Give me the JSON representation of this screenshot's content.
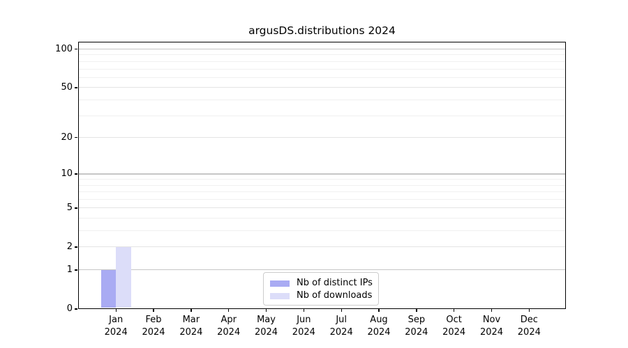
{
  "figure": {
    "background": "#ffffff"
  },
  "chart_data": {
    "type": "bar",
    "title": "argusDS.distributions 2024",
    "x_labels": [
      [
        "Jan",
        "2024"
      ],
      [
        "Feb",
        "2024"
      ],
      [
        "Mar",
        "2024"
      ],
      [
        "Apr",
        "2024"
      ],
      [
        "May",
        "2024"
      ],
      [
        "Jun",
        "2024"
      ],
      [
        "Jul",
        "2024"
      ],
      [
        "Aug",
        "2024"
      ],
      [
        "Sep",
        "2024"
      ],
      [
        "Oct",
        "2024"
      ],
      [
        "Nov",
        "2024"
      ],
      [
        "Dec",
        "2024"
      ]
    ],
    "series": [
      {
        "name": "Nb of distinct IPs",
        "color": "#a9abf3",
        "values": [
          1,
          0,
          0,
          0,
          0,
          0,
          0,
          0,
          0,
          0,
          0,
          0
        ]
      },
      {
        "name": "Nb of downloads",
        "color": "#dcddf9",
        "values": [
          2,
          0,
          0,
          0,
          0,
          0,
          0,
          0,
          0,
          0,
          0,
          0
        ]
      }
    ],
    "yscale": "log1p",
    "ylim": [
      0,
      114
    ],
    "y_ticks": [
      0,
      1,
      2,
      5,
      10,
      20,
      50,
      100
    ],
    "y_minor_gridlines": [
      3,
      4,
      6,
      7,
      8,
      9,
      30,
      40,
      60,
      70,
      80,
      90
    ],
    "grid": true,
    "legend_position": "lower center"
  },
  "legend": {
    "items": [
      "Nb of distinct IPs",
      "Nb of downloads"
    ]
  },
  "colors": {
    "bar_distinct_ips": "#a9abf3",
    "bar_downloads": "#dcddf9",
    "grid_decade": "#c6c6c6",
    "grid_major": "#e4e4e4",
    "grid_minor": "#f0f0f0",
    "axis": "#000000",
    "legend_border": "#cccccc",
    "text": "#000000"
  }
}
